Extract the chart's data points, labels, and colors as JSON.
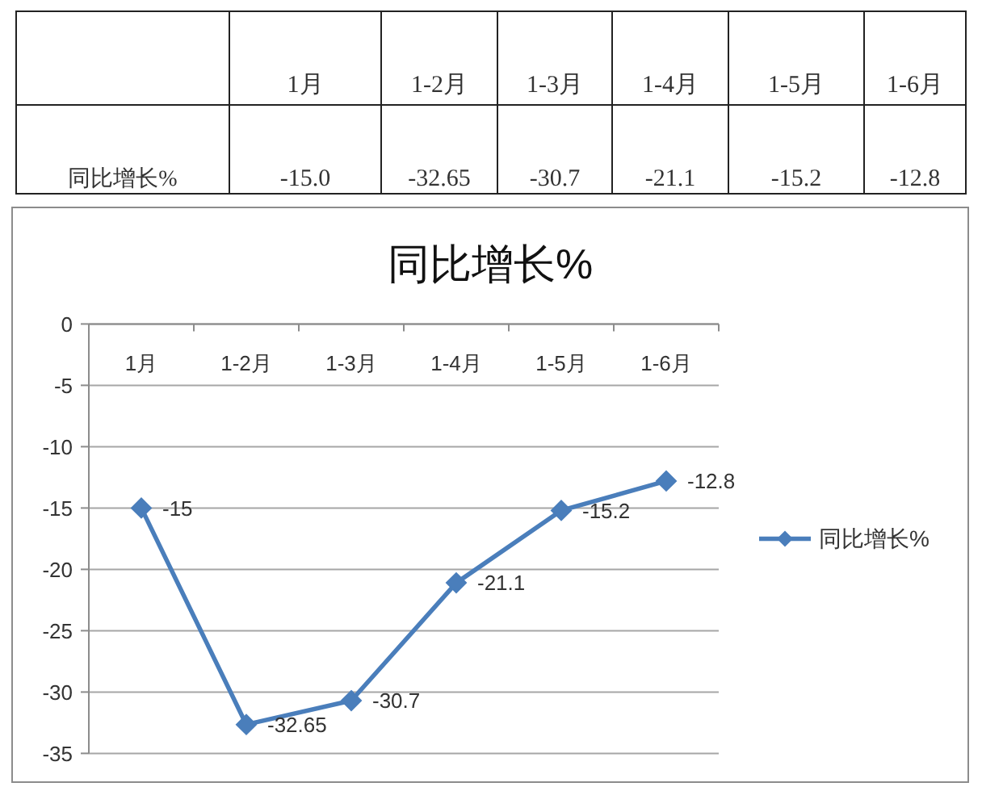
{
  "chart_data": [
    {
      "type": "other",
      "categories": [
        "1月",
        "1-2月",
        "1-3月",
        "1-4月",
        "1-5月",
        "1-6月"
      ],
      "series": [
        {
          "name": "同比增长%",
          "values": [
            -15.0,
            -32.65,
            -30.7,
            -21.1,
            -15.2,
            -12.8
          ],
          "value_labels": [
            "-15.0",
            "-32.65",
            "-30.7",
            "-21.1",
            "-15.2",
            "-12.8"
          ]
        }
      ]
    },
    {
      "type": "line",
      "title": "同比增长%",
      "categories": [
        "1月",
        "1-2月",
        "1-3月",
        "1-4月",
        "1-5月",
        "1-6月"
      ],
      "series": [
        {
          "name": "同比增长%",
          "color": "#4a7ebb",
          "values": [
            -15,
            -32.65,
            -30.7,
            -21.1,
            -15.2,
            -12.8
          ]
        }
      ],
      "ylim": [
        -35,
        0
      ],
      "yticks": [
        0,
        -5,
        -10,
        -15,
        -20,
        -25,
        -30,
        -35
      ],
      "grid": "y",
      "legend": "right",
      "marker": "diamond",
      "data_labels": true
    }
  ]
}
